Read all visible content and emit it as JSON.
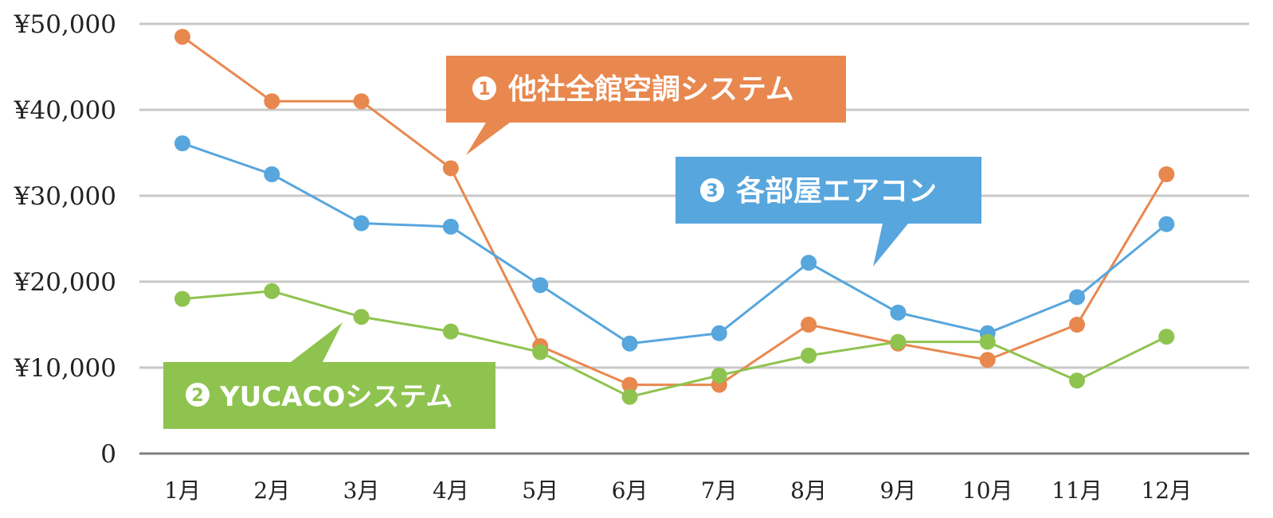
{
  "chart_data": {
    "type": "line",
    "categories": [
      "1月",
      "2月",
      "3月",
      "4月",
      "5月",
      "6月",
      "7月",
      "8月",
      "9月",
      "10月",
      "11月",
      "12月"
    ],
    "ylim": [
      0,
      50000
    ],
    "y_ticks": [
      {
        "value": 0,
        "label": "0"
      },
      {
        "value": 10000,
        "label": "¥10,000"
      },
      {
        "value": 20000,
        "label": "¥20,000"
      },
      {
        "value": 30000,
        "label": "¥30,000"
      },
      {
        "value": 40000,
        "label": "¥40,000"
      },
      {
        "value": 50000,
        "label": "¥50,000"
      }
    ],
    "grid": true,
    "series": [
      {
        "name": "他社全館空調システム",
        "number": "1",
        "color": "#E8884F",
        "values": [
          48500,
          41000,
          41000,
          33200,
          12500,
          8000,
          8000,
          15000,
          12800,
          10900,
          15000,
          32500
        ]
      },
      {
        "name": "YUCACOシステム",
        "number": "2",
        "color": "#8FC34F",
        "values": [
          18000,
          18900,
          15900,
          14200,
          11800,
          6600,
          9100,
          11400,
          13000,
          13000,
          8500,
          13600
        ]
      },
      {
        "name": "各部屋エアコン",
        "number": "3",
        "color": "#57A6DD",
        "values": [
          36100,
          32500,
          26800,
          26400,
          19600,
          12800,
          14000,
          22200,
          16400,
          14000,
          18200,
          26700
        ]
      }
    ]
  }
}
